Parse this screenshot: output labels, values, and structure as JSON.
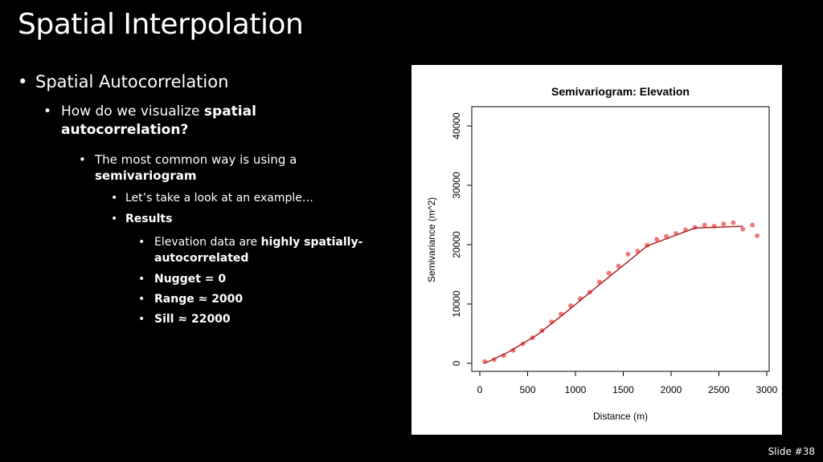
{
  "slide": {
    "title": "Spatial Interpolation",
    "bullet1": "Spatial Autocorrelation",
    "bullet2_pre": "How do we visualize ",
    "bullet2_bold": "spatial autocorrelation?",
    "bullet3_pre": "The most common way is using a ",
    "bullet3_bold": "semivariogram",
    "bullet4": "Let’s take a look at an example…",
    "bullet5": "Results",
    "bullet6_pre": "Elevation data are ",
    "bullet6_bold": "highly spatially-autocorrelated",
    "bullet7": "Nugget = 0",
    "bullet8": "Range ≈ 2000",
    "bullet9": "Sill ≈ 22000",
    "slide_number": "Slide #38"
  },
  "chart_data": {
    "type": "scatter",
    "title": "Semivariogram: Elevation",
    "xlabel": "Distance (m)",
    "ylabel": "Semivariance (m^2)",
    "xlim": [
      0,
      3000
    ],
    "ylim": [
      0,
      40000
    ],
    "x_ticks": [
      "0",
      "500",
      "1000",
      "1500",
      "2000",
      "2500",
      "3000"
    ],
    "y_ticks": [
      "0",
      "10000",
      "20000",
      "30000",
      "40000"
    ],
    "point_color": "#f07a7a",
    "line_color": "#b22222",
    "points": [
      [
        50,
        300
      ],
      [
        150,
        600
      ],
      [
        250,
        1300
      ],
      [
        350,
        2200
      ],
      [
        450,
        3300
      ],
      [
        550,
        4300
      ],
      [
        650,
        5500
      ],
      [
        750,
        7000
      ],
      [
        850,
        8300
      ],
      [
        950,
        9700
      ],
      [
        1050,
        10900
      ],
      [
        1150,
        12000
      ],
      [
        1250,
        13700
      ],
      [
        1350,
        15200
      ],
      [
        1450,
        16400
      ],
      [
        1550,
        18400
      ],
      [
        1650,
        18900
      ],
      [
        1750,
        19900
      ],
      [
        1850,
        20900
      ],
      [
        1950,
        21400
      ],
      [
        2050,
        21900
      ],
      [
        2150,
        22500
      ],
      [
        2250,
        22900
      ],
      [
        2350,
        23300
      ],
      [
        2450,
        23100
      ],
      [
        2550,
        23500
      ],
      [
        2650,
        23700
      ],
      [
        2750,
        22600
      ],
      [
        2850,
        23300
      ],
      [
        2900,
        21500
      ]
    ],
    "fit_line": [
      [
        50,
        0
      ],
      [
        300,
        1900
      ],
      [
        600,
        4800
      ],
      [
        900,
        8600
      ],
      [
        1200,
        12600
      ],
      [
        1500,
        16500
      ],
      [
        1750,
        19800
      ],
      [
        2000,
        21300
      ],
      [
        2250,
        22800
      ],
      [
        2750,
        23100
      ]
    ]
  }
}
